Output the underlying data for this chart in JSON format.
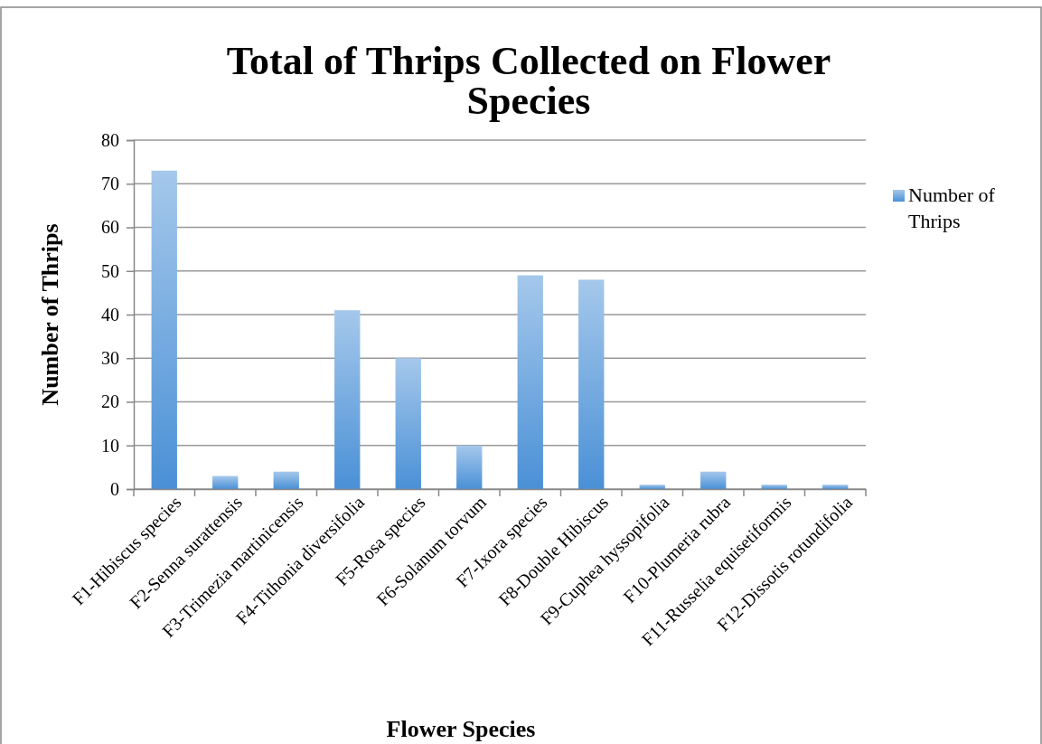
{
  "chart_data": {
    "type": "bar",
    "title": "Total of Thrips Collected on Flower Species",
    "xlabel": "Flower Species",
    "ylabel": "Number of Thrips",
    "categories": [
      "F1-Hibiscus species",
      "F2-Senna surattensis",
      "F3-Trimezia martinicensis",
      "F4-Tithonia diversifolia",
      "F5-Rosa species",
      "F6-Solanum torvum",
      "F7-Ixora species",
      "F8-Double Hibiscus",
      "F9-Cuphea hyssopifolia",
      "F10-Plumeria rubra",
      "F11-Russelia equisetiformis",
      "F12-Dissotis rotundifolia"
    ],
    "series": [
      {
        "name": "Number of Thrips",
        "color": "#4a90d6",
        "values": [
          73,
          3,
          4,
          41,
          30,
          10,
          49,
          48,
          1,
          4,
          1,
          1
        ]
      }
    ],
    "ylim": [
      0,
      80
    ],
    "yticks": [
      0,
      10,
      20,
      30,
      40,
      50,
      60,
      70,
      80
    ],
    "grid": "y",
    "legend": "right"
  }
}
